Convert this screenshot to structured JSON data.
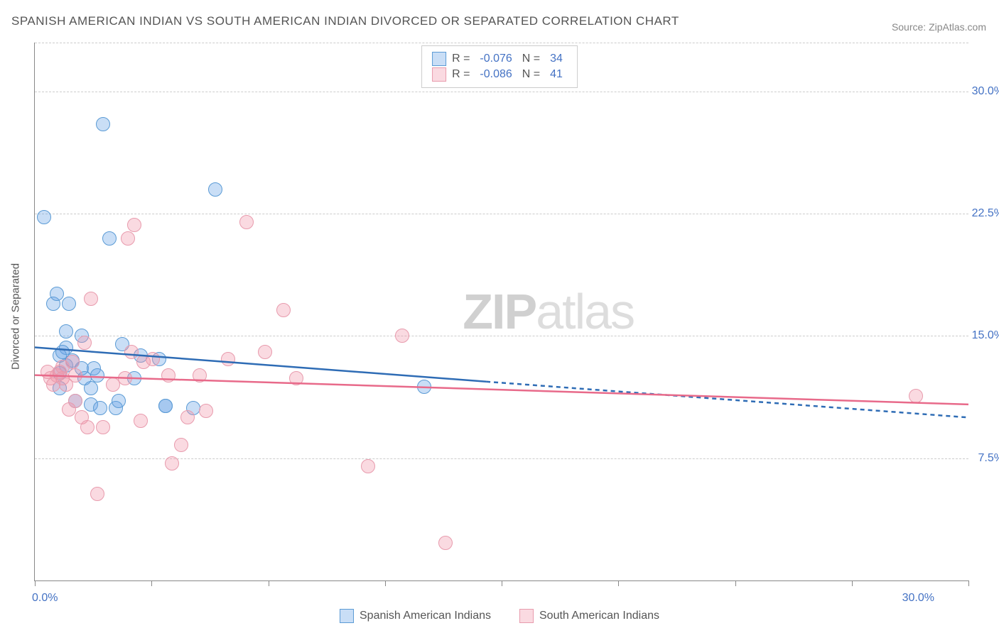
{
  "title": "SPANISH AMERICAN INDIAN VS SOUTH AMERICAN INDIAN DIVORCED OR SEPARATED CORRELATION CHART",
  "source": "Source: ZipAtlas.com",
  "yaxis_title": "Divorced or Separated",
  "xaxis_min_label": "0.0%",
  "xaxis_max_label": "30.0%",
  "watermark_a": "ZIP",
  "watermark_b": "atlas",
  "chart": {
    "type": "scatter",
    "plot_bg": "#ffffff",
    "grid_color": "#cccccc",
    "axis_color": "#888888",
    "label_color": "#4472c4",
    "text_color": "#555555",
    "xlim": [
      0,
      30
    ],
    "ylim": [
      0,
      33
    ],
    "yticks": [
      {
        "v": 7.5,
        "label": "7.5%"
      },
      {
        "v": 15.0,
        "label": "15.0%"
      },
      {
        "v": 22.5,
        "label": "22.5%"
      },
      {
        "v": 30.0,
        "label": "30.0%"
      }
    ],
    "xticks": [
      0,
      3.75,
      7.5,
      11.25,
      15,
      18.75,
      22.5,
      26.25,
      30
    ],
    "marker_radius": 10,
    "marker_border": 1.5,
    "series": [
      {
        "name": "Spanish American Indians",
        "fill": "rgba(100,160,230,0.35)",
        "stroke": "#5b9bd5",
        "line_color": "#2e6cb5",
        "R_label": "R =",
        "R": "-0.076",
        "N_label": "N =",
        "N": "34",
        "trend": {
          "x1": 0,
          "y1": 14.3,
          "x2": 14.5,
          "y2": 12.2,
          "x2_ext": 30,
          "y2_ext": 10.0
        },
        "points": [
          [
            0.3,
            22.3
          ],
          [
            0.6,
            17.0
          ],
          [
            0.7,
            17.6
          ],
          [
            1.0,
            13.2
          ],
          [
            1.0,
            14.3
          ],
          [
            1.0,
            15.3
          ],
          [
            0.8,
            12.7
          ],
          [
            0.8,
            11.8
          ],
          [
            0.8,
            13.8
          ],
          [
            0.9,
            14.0
          ],
          [
            1.1,
            17.0
          ],
          [
            1.2,
            13.5
          ],
          [
            1.5,
            15.0
          ],
          [
            1.5,
            13.0
          ],
          [
            1.6,
            12.4
          ],
          [
            1.8,
            10.8
          ],
          [
            1.8,
            11.8
          ],
          [
            1.9,
            13.0
          ],
          [
            2.0,
            12.6
          ],
          [
            2.1,
            10.6
          ],
          [
            2.2,
            28.0
          ],
          [
            2.4,
            21.0
          ],
          [
            2.6,
            10.6
          ],
          [
            2.7,
            11.0
          ],
          [
            2.8,
            14.5
          ],
          [
            3.2,
            12.4
          ],
          [
            3.4,
            13.8
          ],
          [
            4.0,
            13.6
          ],
          [
            4.2,
            10.7
          ],
          [
            4.19,
            10.72
          ],
          [
            5.1,
            10.6
          ],
          [
            5.8,
            24.0
          ],
          [
            12.5,
            11.9
          ],
          [
            1.3,
            11.0
          ]
        ]
      },
      {
        "name": "South American Indians",
        "fill": "rgba(240,150,170,0.35)",
        "stroke": "#e89bad",
        "line_color": "#e86a8a",
        "R_label": "R =",
        "R": "-0.086",
        "N_label": "N =",
        "N": "41",
        "trend": {
          "x1": 0,
          "y1": 12.6,
          "x2": 30,
          "y2": 10.8
        },
        "points": [
          [
            0.4,
            12.8
          ],
          [
            0.5,
            12.4
          ],
          [
            0.6,
            12.0
          ],
          [
            0.7,
            12.6
          ],
          [
            0.8,
            12.8
          ],
          [
            0.9,
            12.4
          ],
          [
            0.9,
            13.1
          ],
          [
            1.0,
            12.0
          ],
          [
            1.1,
            10.5
          ],
          [
            1.2,
            13.4
          ],
          [
            1.3,
            11.0
          ],
          [
            1.3,
            12.6
          ],
          [
            1.5,
            10.0
          ],
          [
            1.6,
            14.6
          ],
          [
            1.7,
            9.4
          ],
          [
            1.8,
            17.3
          ],
          [
            2.0,
            5.3
          ],
          [
            2.2,
            9.4
          ],
          [
            2.5,
            12.0
          ],
          [
            2.9,
            12.4
          ],
          [
            3.0,
            21.0
          ],
          [
            3.1,
            14.0
          ],
          [
            3.2,
            21.8
          ],
          [
            3.4,
            9.8
          ],
          [
            3.5,
            13.4
          ],
          [
            3.8,
            13.6
          ],
          [
            4.3,
            12.6
          ],
          [
            4.4,
            7.2
          ],
          [
            4.7,
            8.3
          ],
          [
            4.9,
            10.0
          ],
          [
            5.3,
            12.6
          ],
          [
            5.5,
            10.4
          ],
          [
            6.2,
            13.6
          ],
          [
            6.8,
            22.0
          ],
          [
            7.4,
            14.0
          ],
          [
            8.0,
            16.6
          ],
          [
            8.4,
            12.4
          ],
          [
            10.7,
            7.0
          ],
          [
            11.8,
            15.0
          ],
          [
            13.2,
            2.3
          ],
          [
            28.3,
            11.3
          ]
        ]
      }
    ]
  }
}
